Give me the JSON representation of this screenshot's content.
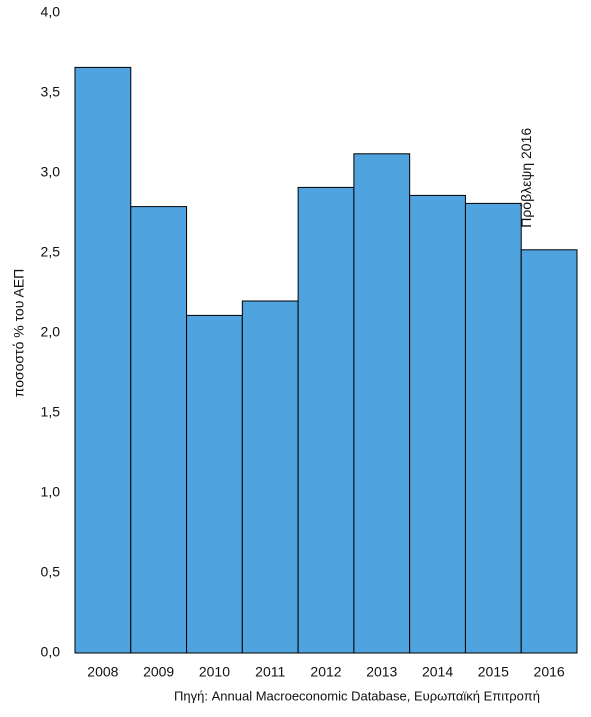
{
  "chart_data": {
    "type": "bar",
    "y_label": "ποσοστό % του ΑΕΠ",
    "source": "Πηγή: Annual Macroeconomic Database, Ευρωπαϊκή Επιτροπή",
    "annotation": "Πρόβλεψη 2016",
    "categories": [
      "2008",
      "2009",
      "2010",
      "2011",
      "2012",
      "2013",
      "2014",
      "2015",
      "2016"
    ],
    "values": [
      3.66,
      2.79,
      2.11,
      2.2,
      2.91,
      3.12,
      2.86,
      2.81,
      2.52
    ],
    "color": "#4fa3df",
    "ylim": [
      0,
      4
    ],
    "yticks": [
      {
        "value": 0,
        "label": "0,0"
      },
      {
        "value": 0.5,
        "label": "0,5"
      },
      {
        "value": 1,
        "label": "1,0"
      },
      {
        "value": 1.5,
        "label": "1,5"
      },
      {
        "value": 2,
        "label": "2,0"
      },
      {
        "value": 2.5,
        "label": "2,5"
      },
      {
        "value": 3,
        "label": "3,0"
      },
      {
        "value": 3.5,
        "label": "3,5"
      },
      {
        "value": 4,
        "label": "4,0"
      }
    ]
  }
}
